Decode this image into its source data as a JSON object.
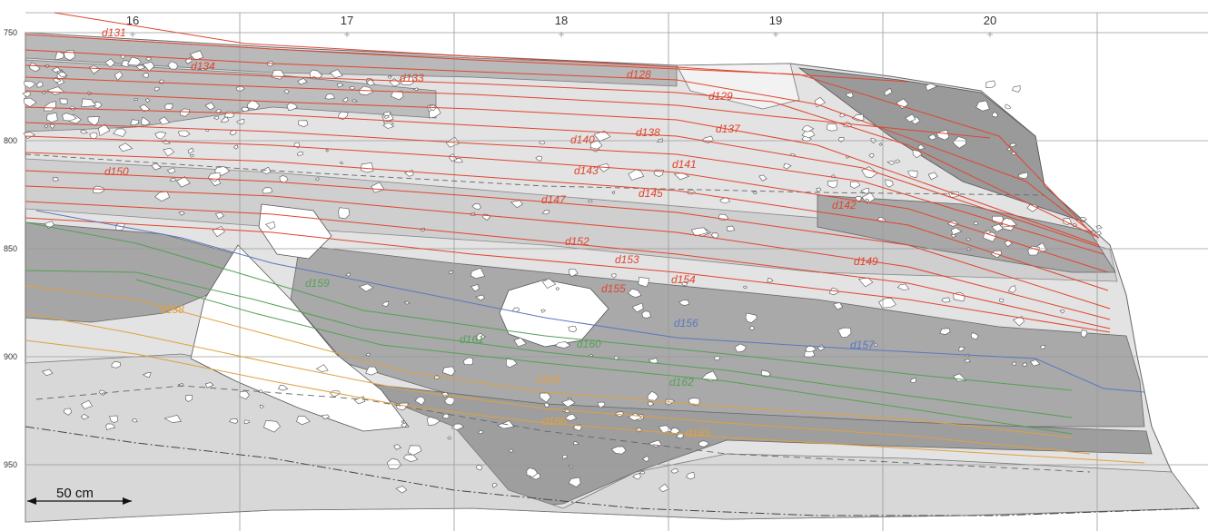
{
  "grid": {
    "columns": [
      "16",
      "17",
      "18",
      "19",
      "20"
    ],
    "rows": [
      "750",
      "800",
      "850",
      "900",
      "950"
    ]
  },
  "colors": {
    "red": "#e0452f",
    "blue": "#5a78c0",
    "green": "#55a055",
    "orange": "#e0a040"
  },
  "groups": {
    "red": [
      {
        "id": "d131",
        "text": "d131"
      },
      {
        "id": "d134",
        "text": "d134"
      },
      {
        "id": "d133",
        "text": "d133"
      },
      {
        "id": "d128",
        "text": "d128"
      },
      {
        "id": "d129",
        "text": "d129"
      },
      {
        "id": "d137",
        "text": "d137"
      },
      {
        "id": "d138",
        "text": "d138"
      },
      {
        "id": "d140",
        "text": "d140"
      },
      {
        "id": "d150",
        "text": "d150"
      },
      {
        "id": "d143",
        "text": "d143"
      },
      {
        "id": "d141",
        "text": "d141"
      },
      {
        "id": "d145",
        "text": "d145"
      },
      {
        "id": "d147",
        "text": "d147"
      },
      {
        "id": "d142",
        "text": "d142"
      },
      {
        "id": "d152",
        "text": "d152"
      },
      {
        "id": "d153",
        "text": "d153"
      },
      {
        "id": "d149",
        "text": "d149"
      },
      {
        "id": "d154",
        "text": "d154"
      },
      {
        "id": "d155",
        "text": "d155"
      }
    ],
    "blue": [
      {
        "id": "d156",
        "text": "d156"
      },
      {
        "id": "d157",
        "text": "d157"
      }
    ],
    "green": [
      {
        "id": "d159",
        "text": "d159"
      },
      {
        "id": "d161",
        "text": "d161"
      },
      {
        "id": "d160",
        "text": "d160"
      },
      {
        "id": "d162",
        "text": "d162"
      }
    ],
    "orange": [
      {
        "id": "d158",
        "text": "d158"
      },
      {
        "id": "d163",
        "text": "d163"
      },
      {
        "id": "d166",
        "text": "d166"
      },
      {
        "id": "d165",
        "text": "d165"
      }
    ]
  },
  "scale": {
    "label": "50 cm"
  }
}
